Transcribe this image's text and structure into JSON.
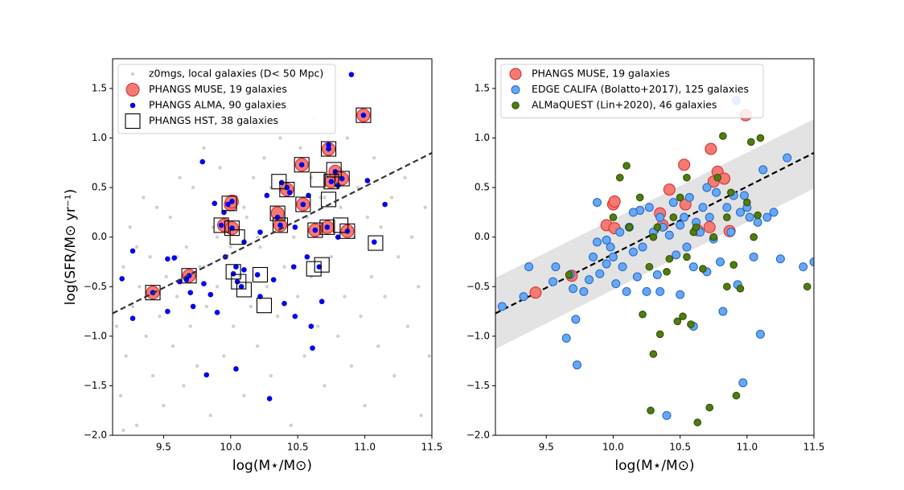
{
  "chart_data": [
    {
      "type": "scatter",
      "xlabel": "log(M⋆/M⊙)",
      "ylabel": "log(SFR/M⊙ yr⁻¹)",
      "xlim": [
        9.12,
        11.5
      ],
      "ylim": [
        -2.0,
        1.8
      ],
      "xticks": [
        9.5,
        {
          "value": 10,
          "label": "10.0"
        },
        10.5,
        {
          "value": 11,
          "label": "11.0"
        },
        11.5
      ],
      "yticks": [
        {
          "value": -2,
          "label": "−2.0"
        },
        {
          "value": -1.5,
          "label": "−1.5"
        },
        {
          "value": -1,
          "label": "−1.0"
        },
        {
          "value": -0.5,
          "label": "−0.5"
        },
        {
          "value": 0,
          "label": "0.0"
        },
        0.5,
        {
          "value": 1,
          "label": "1.0"
        },
        1.5
      ],
      "legend": "upper left",
      "fit": {
        "x": [
          9.12,
          11.5
        ],
        "values": [
          -0.77,
          0.85
        ],
        "color": "#333333",
        "style": "dashed"
      },
      "series": [
        {
          "name": "z0mgs, local galaxies (D< 50 Mpc)",
          "marker": "dot",
          "color": "#b0b0b0",
          "edgecolor": "none",
          "size": 2.2,
          "x": [
            9.15,
            9.18,
            9.2,
            9.22,
            9.25,
            9.27,
            9.3,
            9.32,
            9.35,
            9.37,
            9.4,
            9.42,
            9.45,
            9.47,
            9.5,
            9.52,
            9.55,
            9.57,
            9.6,
            9.62,
            9.65,
            9.67,
            9.7,
            9.72,
            9.75,
            9.77,
            9.8,
            9.82,
            9.85,
            9.87,
            9.9,
            9.92,
            9.95,
            9.97,
            10.0,
            10.02,
            10.05,
            10.07,
            10.1,
            10.12,
            10.15,
            10.17,
            10.2,
            10.22,
            10.25,
            10.27,
            10.3,
            10.32,
            10.35,
            10.37,
            10.4,
            10.42,
            10.45,
            10.47,
            10.5,
            10.52,
            10.55,
            10.57,
            10.6,
            10.62,
            10.65,
            10.67,
            10.7,
            10.72,
            10.75,
            10.77,
            10.8,
            10.82,
            10.85,
            10.87,
            10.9,
            10.92,
            10.95,
            10.97,
            11.0,
            11.02,
            11.05,
            11.07,
            11.1,
            11.12,
            11.15,
            11.2,
            11.22,
            11.25,
            11.3,
            11.32,
            11.35,
            11.4,
            11.42,
            11.45,
            11.48,
            9.3,
            9.6,
            9.9,
            10.1,
            10.3,
            10.6,
            10.85,
            9.7,
            10.0,
            10.4,
            10.7,
            9.45,
            9.8,
            10.2,
            10.55,
            9.2,
            9.5,
            10.15,
            9.9
          ],
          "values": [
            -0.9,
            -1.6,
            -0.3,
            -1.2,
            0.1,
            -0.7,
            -1.9,
            -0.5,
            0.4,
            -1.0,
            -0.2,
            -1.4,
            0.3,
            -0.8,
            -1.7,
            -0.4,
            0.2,
            -1.1,
            -0.6,
            0.6,
            -1.5,
            -0.1,
            -0.9,
            0.5,
            -1.3,
            -0.3,
            0.9,
            -0.7,
            -1.8,
            0.1,
            -0.5,
            0.7,
            -1.2,
            -0.2,
            0.4,
            -0.9,
            1.1,
            -0.4,
            -1.6,
            0.2,
            -0.7,
            0.6,
            -1.1,
            -0.1,
            0.8,
            -0.5,
            -1.4,
            0.3,
            -0.8,
            1.0,
            -0.3,
            0.5,
            -1.9,
            0.0,
            -0.6,
            0.9,
            -1.2,
            0.2,
            -0.4,
            1.2,
            -0.9,
            0.4,
            -1.5,
            0.1,
            -0.2,
            0.7,
            -1.0,
            0.3,
            -0.6,
            1.0,
            -1.3,
            0.0,
            0.5,
            -0.8,
            -1.7,
            0.2,
            -0.4,
            0.8,
            -1.1,
            0.1,
            -0.6,
            0.4,
            -1.4,
            -0.2,
            0.6,
            -0.9,
            0.0,
            -0.5,
            -1.8,
            0.3,
            -1.2,
            -0.1,
            -0.2,
            0.0,
            0.3,
            0.5,
            0.6,
            0.6,
            -0.4,
            -0.1,
            0.2,
            0.4,
            -0.6,
            -0.3,
            0.0,
            0.3,
            -1.95,
            1.4,
            1.3,
            1.5
          ]
        },
        {
          "name": "PHANGS MUSE, 19 galaxies",
          "marker": "circle",
          "color": "#f47a74",
          "edgecolor": "#d62728",
          "size": 8,
          "x": [
            9.42,
            9.69,
            9.95,
            10.0,
            10.01,
            10.01,
            10.35,
            10.37,
            10.42,
            10.53,
            10.54,
            10.63,
            10.72,
            10.73,
            10.75,
            10.78,
            10.83,
            10.87,
            10.99
          ],
          "values": [
            -0.56,
            -0.39,
            0.12,
            0.33,
            0.36,
            0.09,
            0.24,
            0.12,
            0.48,
            0.73,
            0.33,
            0.07,
            0.1,
            0.89,
            0.56,
            0.66,
            0.59,
            0.06,
            1.23
          ]
        },
        {
          "name": "PHANGS ALMA, 90 galaxies",
          "marker": "dot",
          "color": "#0000ee",
          "edgecolor": "none",
          "size": 3.3,
          "x": [
            9.19,
            9.27,
            9.27,
            9.42,
            9.53,
            9.58,
            9.53,
            9.62,
            9.67,
            9.69,
            9.7,
            9.72,
            9.79,
            9.8,
            9.82,
            9.85,
            9.88,
            9.9,
            9.93,
            9.96,
            9.98,
            10.01,
            10.01,
            10.02,
            10.04,
            10.05,
            10.04,
            10.08,
            10.1,
            10.2,
            10.22,
            10.27,
            10.29,
            10.32,
            10.35,
            10.37,
            10.38,
            10.4,
            10.42,
            10.44,
            10.47,
            10.48,
            10.53,
            10.54,
            10.57,
            10.6,
            10.61,
            10.63,
            10.66,
            10.68,
            10.72,
            10.73,
            10.73,
            10.75,
            10.78,
            10.8,
            10.83,
            10.87,
            10.9,
            10.99,
            11.02,
            11.07,
            11.15,
            10.58,
            10.22,
            10.1,
            9.95,
            10.8,
            10.48
          ],
          "values": [
            -0.42,
            -0.14,
            -0.82,
            -0.56,
            -0.22,
            -0.21,
            -0.75,
            -0.45,
            -0.43,
            -0.39,
            -0.56,
            -0.7,
            0.76,
            -0.47,
            -1.39,
            -0.58,
            0.34,
            -0.76,
            0.12,
            -0.2,
            0.33,
            0.36,
            0.09,
            -0.37,
            -0.3,
            -0.45,
            -1.33,
            -0.5,
            -0.33,
            -0.38,
            0.05,
            0.42,
            -1.63,
            -0.43,
            0.2,
            0.12,
            0.55,
            -0.67,
            0.5,
            0.45,
            -0.3,
            0.1,
            0.73,
            0.33,
            -0.2,
            -0.9,
            -1.12,
            0.07,
            -0.3,
            -0.65,
            0.1,
            0.89,
            0.93,
            0.56,
            0.66,
            0.52,
            0.59,
            0.06,
            1.64,
            1.23,
            0.57,
            -0.05,
            0.33,
            0.42,
            -0.6,
            -0.05,
            0.25,
            0.0,
            -0.8
          ]
        },
        {
          "name": "PHANGS HST, 38 galaxies",
          "marker": "square",
          "color": "none",
          "edgecolor": "#000000",
          "size": 9,
          "x": [
            9.42,
            9.69,
            9.93,
            9.99,
            10.01,
            10.05,
            10.02,
            10.06,
            10.1,
            10.22,
            10.25,
            10.35,
            10.37,
            10.36,
            10.42,
            10.53,
            10.54,
            10.63,
            10.62,
            10.68,
            10.65,
            10.72,
            10.73,
            10.73,
            10.75,
            10.77,
            10.83,
            10.82,
            10.87,
            10.99,
            11.08
          ],
          "values": [
            -0.56,
            -0.39,
            0.12,
            0.34,
            0.09,
            0.0,
            -0.35,
            -0.45,
            -0.53,
            -0.38,
            -0.69,
            0.24,
            0.12,
            0.56,
            0.48,
            0.73,
            0.33,
            0.07,
            -0.32,
            -0.28,
            0.58,
            0.1,
            0.89,
            0.38,
            0.56,
            0.68,
            0.59,
            0.12,
            0.06,
            1.23,
            -0.06
          ]
        }
      ]
    },
    {
      "type": "scatter",
      "xlabel": "log(M⋆/M⊙)",
      "xlim": [
        9.12,
        11.5
      ],
      "ylim": [
        -2.0,
        1.8
      ],
      "xticks": [
        9.5,
        {
          "value": 10,
          "label": "10.0"
        },
        10.5,
        {
          "value": 11,
          "label": "11.0"
        },
        11.5
      ],
      "yticks": [
        {
          "value": -2,
          "label": "−2.0"
        },
        {
          "value": -1.5,
          "label": "−1.5"
        },
        {
          "value": -1,
          "label": "−1.0"
        },
        {
          "value": -0.5,
          "label": "−0.5"
        },
        {
          "value": 0,
          "label": "0.0"
        },
        0.5,
        {
          "value": 1,
          "label": "1.0"
        },
        1.5
      ],
      "legend": "upper left",
      "band": {
        "x": [
          9.12,
          11.5
        ],
        "lower": [
          -1.13,
          0.49
        ],
        "upper": [
          -0.41,
          1.19
        ],
        "color": "#e3e3e3"
      },
      "fit": {
        "x": [
          9.12,
          11.5
        ],
        "values": [
          -0.77,
          0.85
        ],
        "color": "#000000",
        "style": "dashed"
      },
      "series": [
        {
          "name": "PHANGS MUSE, 19 galaxies",
          "marker": "circle",
          "color": "#f47a74",
          "edgecolor": "#d62728",
          "size": 7,
          "x": [
            9.42,
            9.69,
            9.95,
            10.0,
            10.01,
            10.01,
            10.35,
            10.37,
            10.42,
            10.53,
            10.54,
            10.63,
            10.72,
            10.73,
            10.75,
            10.78,
            10.83,
            10.87,
            10.99
          ],
          "values": [
            -0.56,
            -0.39,
            0.12,
            0.33,
            0.36,
            0.09,
            0.24,
            0.12,
            0.48,
            0.73,
            0.33,
            0.07,
            0.1,
            0.89,
            0.56,
            0.66,
            0.59,
            0.06,
            1.23
          ]
        },
        {
          "name": "EDGE CALIFA (Bolatto+2017), 125 galaxies",
          "marker": "circle",
          "color": "#65a8f5",
          "edgecolor": "#2563c4",
          "size": 5,
          "x": [
            9.17,
            9.33,
            9.37,
            9.55,
            9.57,
            9.65,
            9.68,
            9.7,
            9.72,
            9.73,
            9.78,
            9.82,
            9.85,
            9.88,
            9.88,
            9.9,
            9.95,
            9.98,
            10.0,
            10.02,
            10.05,
            10.07,
            10.1,
            10.12,
            10.15,
            10.18,
            10.2,
            10.22,
            10.25,
            10.27,
            10.3,
            10.33,
            10.35,
            10.37,
            10.4,
            10.42,
            10.45,
            10.47,
            10.5,
            10.5,
            10.53,
            10.55,
            10.57,
            10.6,
            10.62,
            10.65,
            10.67,
            10.7,
            10.72,
            10.75,
            10.77,
            10.8,
            10.82,
            10.85,
            10.88,
            10.9,
            10.93,
            10.95,
            10.97,
            10.98,
            11.0,
            11.02,
            11.05,
            11.08,
            11.1,
            11.12,
            11.15,
            11.2,
            11.25,
            11.3,
            11.42,
            11.5,
            10.92,
            10.7,
            10.15,
            10.35,
            9.95,
            10.6
          ],
          "values": [
            -0.7,
            -0.6,
            -0.3,
            -0.45,
            -0.3,
            -1.02,
            -0.38,
            -0.52,
            -0.83,
            -1.29,
            -0.55,
            -0.43,
            -0.2,
            0.35,
            -0.05,
            -0.37,
            -0.27,
            -0.1,
            -0.2,
            -0.47,
            0.05,
            -0.3,
            -0.55,
            0.1,
            -0.15,
            -0.4,
            0.27,
            -0.1,
            -0.55,
            0.3,
            0.05,
            -0.38,
            -0.55,
            0.1,
            -1.8,
            0.02,
            0.35,
            -0.18,
            -0.58,
            0.12,
            0.2,
            -0.1,
            0.4,
            -0.9,
            0.15,
            0.05,
            0.3,
            -0.35,
            0.2,
            -0.02,
            0.45,
            -0.25,
            -0.75,
            0.3,
            0.05,
            0.42,
            -0.48,
            0.25,
            -1.47,
            0.42,
            0.3,
            0.2,
            -0.2,
            0.15,
            -0.98,
            0.68,
            0.2,
            0.25,
            -0.22,
            0.8,
            -0.3,
            -0.25,
            1.38,
            0.5,
            0.25,
            0.2,
            -0.03,
            -0.3
          ]
        },
        {
          "name": "ALMaQUEST (Lin+2020), 46 galaxies",
          "marker": "circle",
          "color": "#4e7d10",
          "edgecolor": "#2d4a00",
          "size": 4.3,
          "x": [
            9.67,
            10.0,
            10.05,
            10.1,
            10.12,
            10.2,
            10.22,
            10.27,
            10.3,
            10.33,
            10.35,
            10.4,
            10.42,
            10.45,
            10.48,
            10.5,
            10.52,
            10.55,
            10.55,
            10.58,
            10.6,
            10.63,
            10.67,
            10.72,
            10.75,
            10.78,
            10.82,
            10.85,
            10.88,
            10.9,
            10.92,
            10.95,
            11.0,
            11.03,
            11.05,
            11.1,
            11.08,
            11.45,
            10.28,
            10.85,
            10.3,
            10.62
          ],
          "values": [
            -0.38,
            0.2,
            0.6,
            0.72,
            0.1,
            0.4,
            -0.78,
            -0.3,
            -1.18,
            0.1,
            -0.98,
            -0.35,
            -0.22,
            0.2,
            -0.85,
            0.4,
            -0.8,
            -0.2,
            0.6,
            -0.88,
            0.05,
            -1.87,
            -0.32,
            -1.72,
            0.0,
            0.6,
            1.02,
            -0.5,
            0.45,
            -0.28,
            -1.6,
            -0.52,
            0.35,
            0.96,
            0.0,
            1.0,
            0.22,
            -0.5,
            -1.75,
            0.2,
            0.0,
            0.1
          ]
        }
      ]
    }
  ]
}
